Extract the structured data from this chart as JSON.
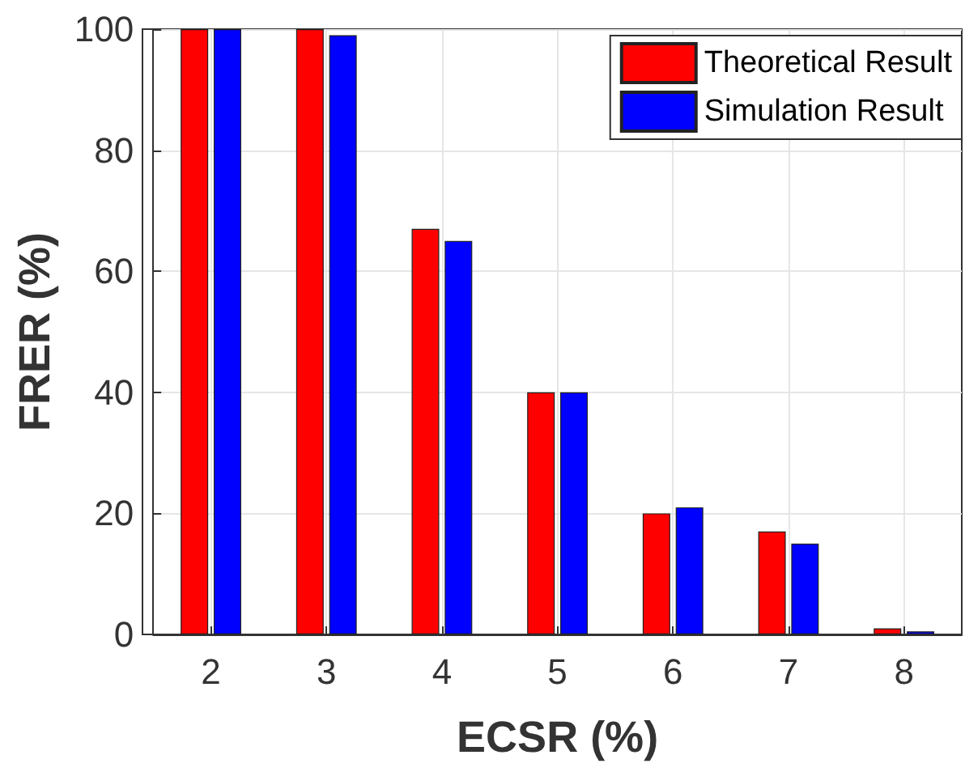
{
  "chart_data": {
    "type": "bar",
    "xlabel": "ECSR (%)",
    "ylabel": "FRER (%)",
    "x": [
      2,
      3,
      4,
      5,
      6,
      7,
      8
    ],
    "xlim": [
      1.5,
      8.5
    ],
    "xticks": [
      2,
      3,
      4,
      5,
      6,
      7,
      8
    ],
    "ylim": [
      0,
      100
    ],
    "yticks": [
      0,
      20,
      40,
      60,
      80,
      100
    ],
    "grid": true,
    "legend": "top right",
    "series": [
      {
        "name": "Theoretical Result",
        "color": "#ff0000",
        "values": [
          100,
          100,
          67,
          40,
          20,
          17,
          1
        ]
      },
      {
        "name": "Simulation Result",
        "color": "#0000ff",
        "values": [
          100,
          99,
          65,
          40,
          21,
          15,
          0.5
        ]
      }
    ]
  }
}
